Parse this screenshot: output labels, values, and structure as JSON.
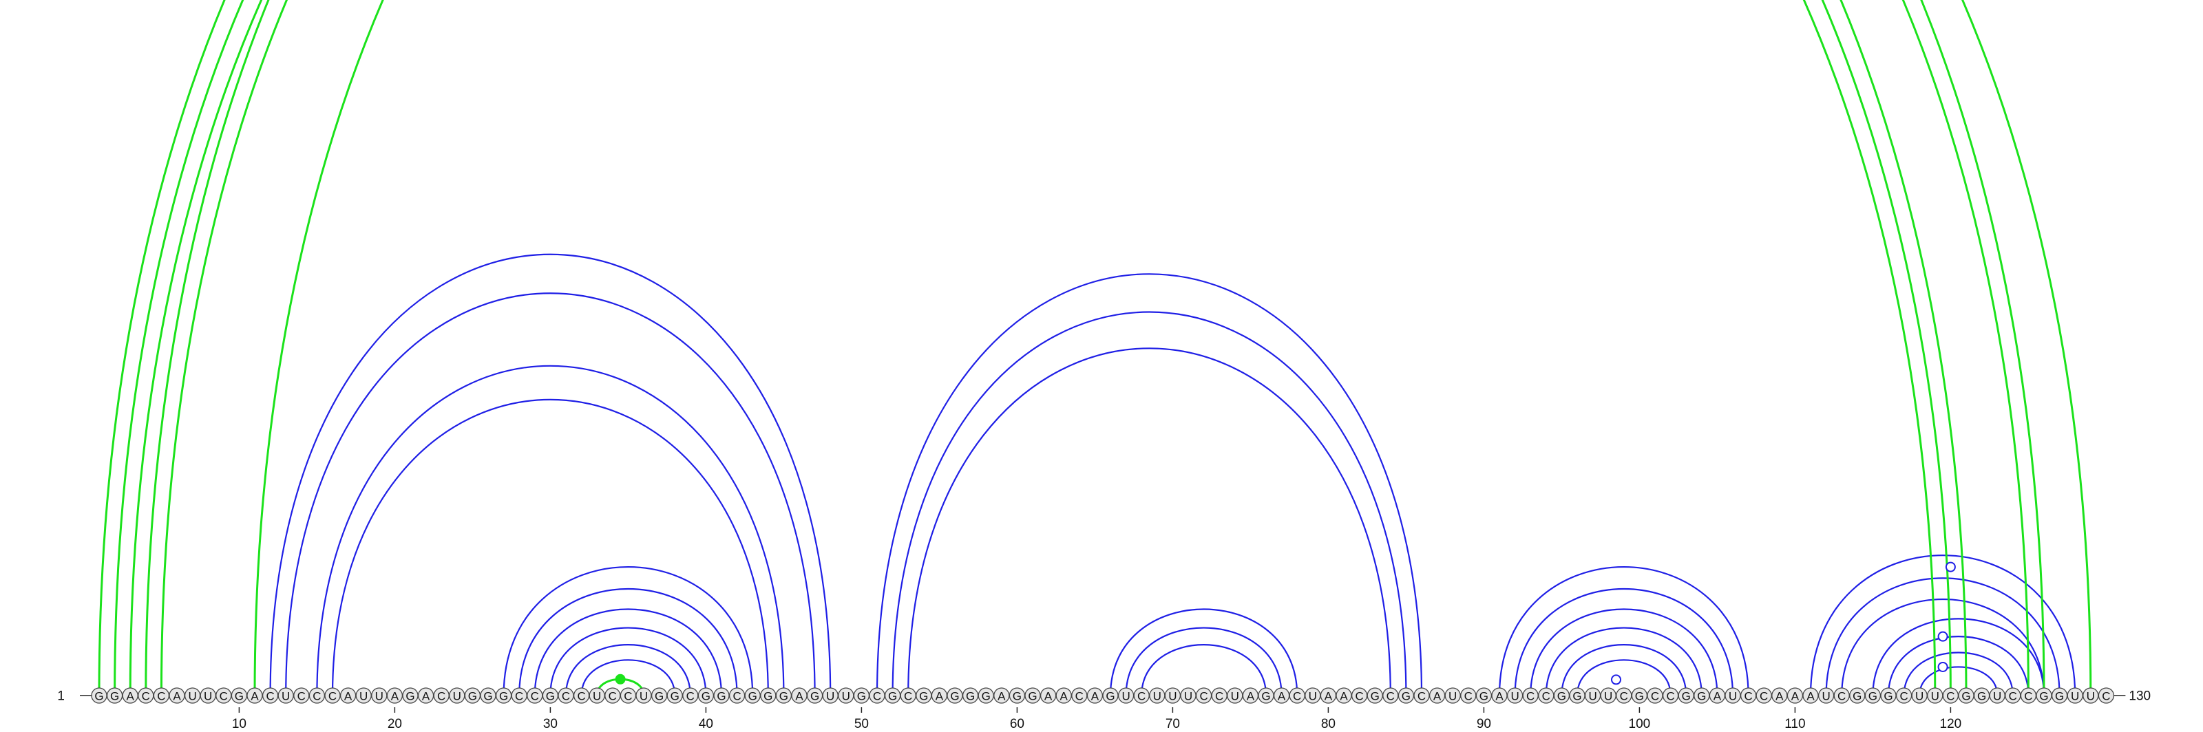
{
  "sequence": "GGACCAUUCGACUCCCAUUAGACUGGGCCGCCUCCUGGCGGCGGGAGUUGCGCGAGGGAGGAACAGUCUUUCCUAGACUAACGCGCAUCGAUCCGGUUCGCCGGAUCCAAAUCGGGCUUCGGUCCGGUUC",
  "start_label": "1",
  "end_label": "130",
  "ticks": [
    "10",
    "20",
    "30",
    "40",
    "50",
    "60",
    "70",
    "80",
    "90",
    "100",
    "110",
    "120"
  ],
  "colors": {
    "blue": "#1f1fe6",
    "green": "#1be21b",
    "nucleotide_fill": "#e6e6e6"
  },
  "blue_stems": [
    {
      "i": 12,
      "j": 48,
      "n": 2
    },
    {
      "i": 15,
      "j": 45,
      "n": 2
    },
    {
      "i": 27,
      "j": 43,
      "n": 6
    },
    {
      "i": 51,
      "j": 86,
      "n": 3
    },
    {
      "i": 66,
      "j": 78,
      "n": 3
    },
    {
      "i": 91,
      "j": 107,
      "n": 6
    },
    {
      "i": 111,
      "j": 128,
      "n": 3
    },
    {
      "i": 115,
      "j": 126,
      "n": 4
    }
  ],
  "green_stems": [
    {
      "i": 1,
      "j": 121,
      "n": 3
    },
    {
      "i": 4,
      "j": 126,
      "n": 2
    },
    {
      "i": 11,
      "j": 129,
      "n": 1
    }
  ],
  "green_pairs": [
    {
      "i": 33,
      "j": 36
    }
  ],
  "markers": [
    {
      "i": 11,
      "j": 129,
      "color": "green",
      "filled": false
    },
    {
      "i": 33,
      "j": 36,
      "color": "green",
      "filled": true
    },
    {
      "i": 97,
      "j": 100,
      "color": "blue",
      "filled": false
    },
    {
      "i": 117,
      "j": 122,
      "color": "blue",
      "filled": false
    },
    {
      "i": 115,
      "j": 124,
      "color": "blue",
      "filled": false
    },
    {
      "i": 112,
      "j": 128,
      "color": "blue",
      "filled": false
    }
  ]
}
